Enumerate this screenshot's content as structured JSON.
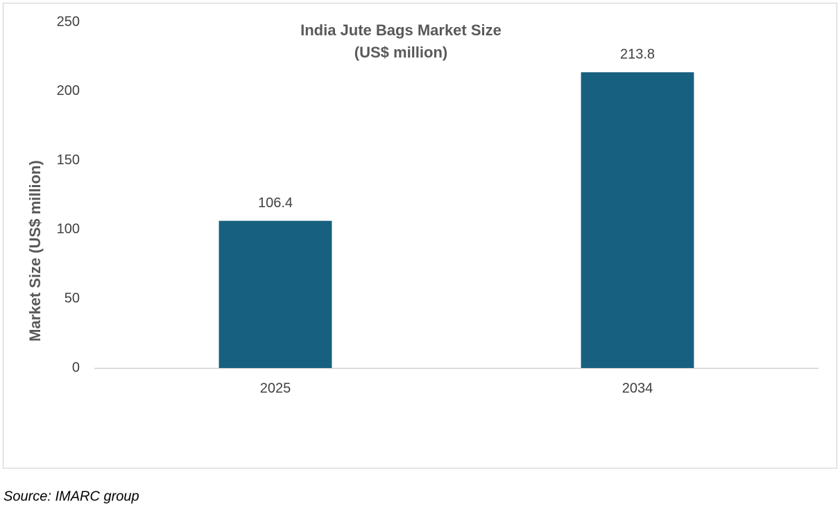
{
  "chart_data": {
    "type": "bar",
    "title": "India Jute Bags Market Size",
    "subtitle": "(US$ million)",
    "y_label": "Market Size (US$ million)",
    "source": "Source: IMARC group",
    "categories": [
      "2025",
      "2034"
    ],
    "values": [
      106.4,
      213.8
    ],
    "color": "#17607f",
    "ylim": [
      0,
      250
    ],
    "yticks": [
      0,
      50,
      100,
      150,
      200,
      250
    ],
    "grid": false
  }
}
